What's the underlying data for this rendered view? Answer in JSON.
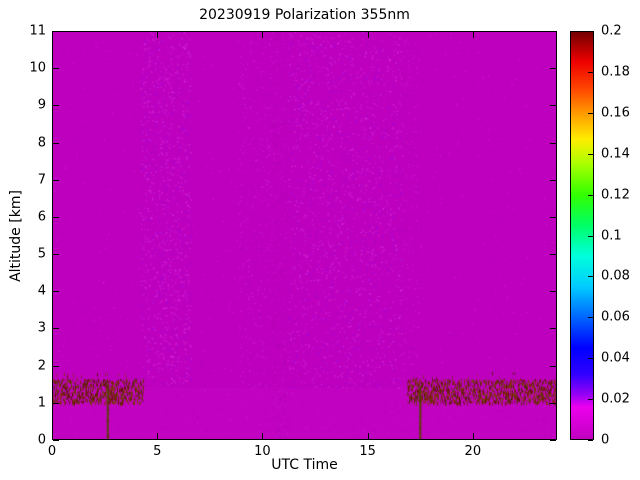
{
  "figure": {
    "title": "20230919 Polarization 355nm",
    "xlabel": "UTC Time",
    "ylabel": "Altitude [km]"
  },
  "chart_data": {
    "type": "heatmap",
    "title": "20230919 Polarization 355nm",
    "xlabel": "UTC Time",
    "ylabel": "Altitude [km]",
    "xlim": [
      0,
      24
    ],
    "ylim": [
      0,
      11
    ],
    "grid": false,
    "legend": "none",
    "x_ticks": [
      0,
      5,
      10,
      15,
      20
    ],
    "x_tick_labels": [
      "0",
      "5",
      "10",
      "15",
      "20"
    ],
    "y_ticks": [
      0,
      1,
      2,
      3,
      4,
      5,
      6,
      7,
      8,
      9,
      10,
      11
    ],
    "y_tick_labels": [
      "0",
      "1",
      "2",
      "3",
      "4",
      "5",
      "6",
      "7",
      "8",
      "9",
      "10",
      "11"
    ],
    "colorbar": {
      "position": "right",
      "vmin": 0,
      "vmax": 0.2,
      "ticks": [
        0,
        0.02,
        0.04,
        0.06,
        0.08,
        0.1,
        0.12,
        0.14,
        0.16,
        0.18,
        0.2
      ],
      "tick_labels": [
        "0",
        "0.02",
        "0.04",
        "0.06",
        "0.08",
        "0.1",
        "0.12",
        "0.14",
        "0.16",
        "0.18",
        "0.2"
      ],
      "stops": [
        {
          "v": 0.0,
          "color": "#BE00BE"
        },
        {
          "v": 0.016,
          "color": "#EE00EE"
        },
        {
          "v": 0.022,
          "color": "#9900F5"
        },
        {
          "v": 0.032,
          "color": "#3300FF"
        },
        {
          "v": 0.045,
          "color": "#0000FF"
        },
        {
          "v": 0.06,
          "color": "#0066FF"
        },
        {
          "v": 0.075,
          "color": "#00CCFF"
        },
        {
          "v": 0.09,
          "color": "#00FFDD"
        },
        {
          "v": 0.105,
          "color": "#00FF66"
        },
        {
          "v": 0.12,
          "color": "#33FF00"
        },
        {
          "v": 0.135,
          "color": "#AAFF00"
        },
        {
          "v": 0.147,
          "color": "#FFEE00"
        },
        {
          "v": 0.16,
          "color": "#FF9900"
        },
        {
          "v": 0.172,
          "color": "#FF4400"
        },
        {
          "v": 0.185,
          "color": "#EE0000"
        },
        {
          "v": 0.2,
          "color": "#700000"
        }
      ]
    },
    "background": {
      "value": 0,
      "color": "#BE00BE",
      "description": "Depolarization ratio near 0 (magenta) over most of the time-height cross-section"
    },
    "features": {
      "boundary_layer": {
        "altitude_km": [
          0,
          1.45
        ],
        "color": "#C90AC9",
        "alpha": 0.3,
        "description": "Slightly brighter magenta strip below ~1.45 km across all times"
      },
      "surface_band": {
        "altitude_km": [
          1.0,
          1.65
        ],
        "time_segments": [
          [
            0,
            4.35
          ],
          [
            16.9,
            24
          ]
        ],
        "approx_value": 0.2,
        "colors": [
          "#701800",
          "#5C0A00",
          "#7E3800",
          "#833000",
          "#4E2800",
          "#6E4400"
        ],
        "description": "Noisy dark-red high-depolarization layer near 1-1.6 km before ~04:20 UTC and after ~17:00 UTC"
      },
      "vertical_streaks": [
        {
          "time": 2.65,
          "altitude_km": [
            0,
            1.5
          ],
          "color": "#4F4A00"
        },
        {
          "time": 17.5,
          "altitude_km": [
            0,
            1.45
          ],
          "color": "#4F4A00"
        }
      ],
      "speckle_regions": [
        {
          "x": [
            0,
            24
          ],
          "y": [
            0,
            11
          ],
          "density": 0.012,
          "colors": [
            "#D21ED2",
            "#AA00AA",
            "#C800DC"
          ]
        },
        {
          "x": [
            4.2,
            6.6
          ],
          "y": [
            1.5,
            11
          ],
          "density": 0.1,
          "colors": [
            "#D428E0",
            "#E23CE2",
            "#B400C8",
            "#9B00E6"
          ]
        },
        {
          "x": [
            8.8,
            10.4
          ],
          "y": [
            1.4,
            11
          ],
          "density": 0.05,
          "colors": [
            "#D428E0",
            "#C814D2",
            "#AD00B9"
          ]
        },
        {
          "x": [
            10.4,
            11.2
          ],
          "y": [
            0,
            11
          ],
          "density": 0.09,
          "colors": [
            "#A800A8",
            "#C814C8"
          ]
        },
        {
          "x": [
            11.2,
            16.6
          ],
          "y": [
            1.4,
            11
          ],
          "density": 0.07,
          "colors": [
            "#D428E0",
            "#E23CE2",
            "#B400C8",
            "#9B00E6"
          ]
        },
        {
          "x": [
            16.6,
            17.4
          ],
          "y": [
            1.5,
            11
          ],
          "density": 0.05,
          "colors": [
            "#D21ED2",
            "#AA00AA"
          ]
        }
      ]
    }
  }
}
